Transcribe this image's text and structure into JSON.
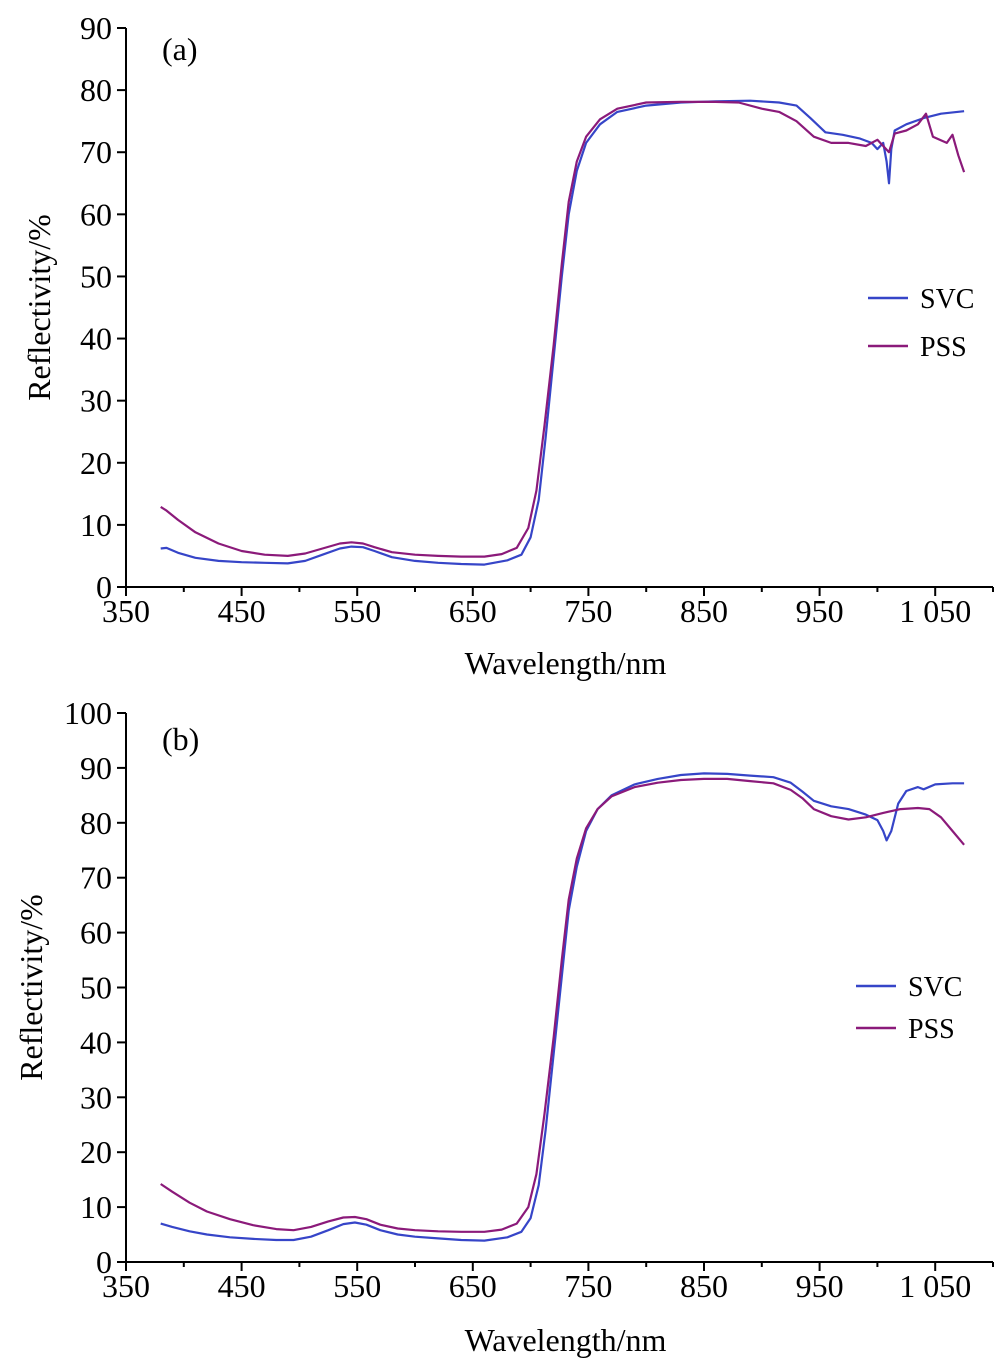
{
  "figure": {
    "colors": {
      "svc": "#3645c8",
      "pss": "#8b1a7a",
      "axis": "#000000"
    }
  },
  "chart_data": [
    {
      "type": "line",
      "panel_label": "(a)",
      "xlabel": "Wavelength/nm",
      "ylabel": "Reflectivity/%",
      "xlim": [
        350,
        1100
      ],
      "ylim": [
        0,
        90
      ],
      "x_ticks": [
        350,
        450,
        550,
        650,
        750,
        850,
        950,
        1050
      ],
      "x_tick_labels": [
        "350",
        "450",
        "550",
        "650",
        "750",
        "850",
        "950",
        "1 050"
      ],
      "y_ticks": [
        0,
        10,
        20,
        30,
        40,
        50,
        60,
        70,
        80,
        90
      ],
      "y_tick_labels": [
        "0",
        "10",
        "20",
        "30",
        "40",
        "50",
        "60",
        "70",
        "80",
        "90"
      ],
      "grid": false,
      "legend": "right",
      "series": [
        {
          "name": "SVC",
          "color": "#3645c8",
          "points": [
            [
              380,
              6.2
            ],
            [
              385,
              6.3
            ],
            [
              395,
              5.5
            ],
            [
              410,
              4.7
            ],
            [
              430,
              4.2
            ],
            [
              450,
              4.0
            ],
            [
              470,
              3.9
            ],
            [
              490,
              3.8
            ],
            [
              505,
              4.2
            ],
            [
              520,
              5.2
            ],
            [
              535,
              6.2
            ],
            [
              545,
              6.5
            ],
            [
              555,
              6.4
            ],
            [
              565,
              5.8
            ],
            [
              580,
              4.8
            ],
            [
              600,
              4.2
            ],
            [
              620,
              3.9
            ],
            [
              640,
              3.7
            ],
            [
              660,
              3.6
            ],
            [
              680,
              4.3
            ],
            [
              692,
              5.2
            ],
            [
              700,
              8.0
            ],
            [
              707,
              14.0
            ],
            [
              713,
              24.0
            ],
            [
              720,
              37.0
            ],
            [
              727,
              50.0
            ],
            [
              733,
              60.0
            ],
            [
              740,
              67.0
            ],
            [
              748,
              71.5
            ],
            [
              760,
              74.5
            ],
            [
              775,
              76.5
            ],
            [
              800,
              77.5
            ],
            [
              830,
              78.0
            ],
            [
              860,
              78.2
            ],
            [
              890,
              78.3
            ],
            [
              915,
              78.0
            ],
            [
              930,
              77.5
            ],
            [
              942,
              75.5
            ],
            [
              955,
              73.2
            ],
            [
              970,
              72.8
            ],
            [
              985,
              72.2
            ],
            [
              995,
              71.5
            ],
            [
              1000,
              70.5
            ],
            [
              1005,
              71.5
            ],
            [
              1008,
              68.5
            ],
            [
              1010,
              65.0
            ],
            [
              1012,
              70.5
            ],
            [
              1015,
              73.5
            ],
            [
              1025,
              74.5
            ],
            [
              1040,
              75.5
            ],
            [
              1055,
              76.2
            ],
            [
              1075,
              76.6
            ]
          ]
        },
        {
          "name": "PSS",
          "color": "#8b1a7a",
          "points": [
            [
              380,
              12.9
            ],
            [
              385,
              12.3
            ],
            [
              395,
              10.8
            ],
            [
              410,
              8.8
            ],
            [
              430,
              7.0
            ],
            [
              450,
              5.8
            ],
            [
              470,
              5.2
            ],
            [
              490,
              5.0
            ],
            [
              505,
              5.4
            ],
            [
              520,
              6.2
            ],
            [
              535,
              7.0
            ],
            [
              545,
              7.2
            ],
            [
              555,
              7.0
            ],
            [
              565,
              6.4
            ],
            [
              580,
              5.6
            ],
            [
              600,
              5.2
            ],
            [
              620,
              5.0
            ],
            [
              640,
              4.9
            ],
            [
              660,
              4.9
            ],
            [
              675,
              5.3
            ],
            [
              688,
              6.3
            ],
            [
              698,
              9.5
            ],
            [
              705,
              15.5
            ],
            [
              712,
              26.0
            ],
            [
              720,
              39.0
            ],
            [
              727,
              52.0
            ],
            [
              733,
              62.0
            ],
            [
              740,
              68.5
            ],
            [
              748,
              72.5
            ],
            [
              760,
              75.3
            ],
            [
              775,
              77.0
            ],
            [
              800,
              78.0
            ],
            [
              830,
              78.1
            ],
            [
              860,
              78.1
            ],
            [
              880,
              78.0
            ],
            [
              900,
              77.0
            ],
            [
              915,
              76.5
            ],
            [
              930,
              75.0
            ],
            [
              945,
              72.5
            ],
            [
              960,
              71.5
            ],
            [
              975,
              71.5
            ],
            [
              990,
              71.0
            ],
            [
              1000,
              72.0
            ],
            [
              1010,
              70.0
            ],
            [
              1015,
              73.0
            ],
            [
              1025,
              73.5
            ],
            [
              1035,
              74.5
            ],
            [
              1042,
              76.2
            ],
            [
              1048,
              72.5
            ],
            [
              1060,
              71.5
            ],
            [
              1065,
              72.8
            ],
            [
              1070,
              69.5
            ],
            [
              1075,
              66.8
            ]
          ]
        }
      ]
    },
    {
      "type": "line",
      "panel_label": "(b)",
      "xlabel": "Wavelength/nm",
      "ylabel": "Reflectivity/%",
      "xlim": [
        350,
        1100
      ],
      "ylim": [
        0,
        100
      ],
      "x_ticks": [
        350,
        450,
        550,
        650,
        750,
        850,
        950,
        1050
      ],
      "x_tick_labels": [
        "350",
        "450",
        "550",
        "650",
        "750",
        "850",
        "950",
        "1 050"
      ],
      "y_ticks": [
        0,
        10,
        20,
        30,
        40,
        50,
        60,
        70,
        80,
        90,
        100
      ],
      "y_tick_labels": [
        "0",
        "10",
        "20",
        "30",
        "40",
        "50",
        "60",
        "70",
        "80",
        "90",
        "100"
      ],
      "grid": false,
      "legend": "right",
      "series": [
        {
          "name": "SVC",
          "color": "#3645c8",
          "points": [
            [
              380,
              7.0
            ],
            [
              390,
              6.4
            ],
            [
              405,
              5.6
            ],
            [
              420,
              5.0
            ],
            [
              440,
              4.5
            ],
            [
              460,
              4.2
            ],
            [
              480,
              4.0
            ],
            [
              495,
              4.0
            ],
            [
              510,
              4.6
            ],
            [
              525,
              5.8
            ],
            [
              538,
              6.9
            ],
            [
              548,
              7.2
            ],
            [
              558,
              6.8
            ],
            [
              570,
              5.8
            ],
            [
              585,
              5.0
            ],
            [
              600,
              4.6
            ],
            [
              620,
              4.3
            ],
            [
              640,
              4.0
            ],
            [
              660,
              3.9
            ],
            [
              680,
              4.5
            ],
            [
              692,
              5.5
            ],
            [
              700,
              8.0
            ],
            [
              707,
              14.0
            ],
            [
              713,
              24.0
            ],
            [
              720,
              38.0
            ],
            [
              727,
              52.0
            ],
            [
              733,
              64.0
            ],
            [
              740,
              72.0
            ],
            [
              748,
              78.5
            ],
            [
              758,
              82.5
            ],
            [
              770,
              85.0
            ],
            [
              790,
              87.0
            ],
            [
              810,
              88.0
            ],
            [
              830,
              88.7
            ],
            [
              850,
              89.0
            ],
            [
              870,
              88.9
            ],
            [
              890,
              88.6
            ],
            [
              910,
              88.3
            ],
            [
              925,
              87.3
            ],
            [
              935,
              85.7
            ],
            [
              945,
              84.0
            ],
            [
              960,
              83.0
            ],
            [
              975,
              82.5
            ],
            [
              990,
              81.5
            ],
            [
              1000,
              80.5
            ],
            [
              1005,
              78.5
            ],
            [
              1008,
              76.8
            ],
            [
              1012,
              78.5
            ],
            [
              1018,
              83.5
            ],
            [
              1025,
              85.8
            ],
            [
              1035,
              86.5
            ],
            [
              1040,
              86.1
            ],
            [
              1050,
              87.0
            ],
            [
              1065,
              87.2
            ],
            [
              1075,
              87.2
            ]
          ]
        },
        {
          "name": "PSS",
          "color": "#8b1a7a",
          "points": [
            [
              380,
              14.2
            ],
            [
              390,
              12.8
            ],
            [
              405,
              10.8
            ],
            [
              420,
              9.2
            ],
            [
              440,
              7.8
            ],
            [
              460,
              6.7
            ],
            [
              480,
              6.0
            ],
            [
              495,
              5.8
            ],
            [
              510,
              6.4
            ],
            [
              525,
              7.4
            ],
            [
              538,
              8.1
            ],
            [
              548,
              8.2
            ],
            [
              558,
              7.8
            ],
            [
              570,
              6.8
            ],
            [
              585,
              6.1
            ],
            [
              600,
              5.8
            ],
            [
              620,
              5.6
            ],
            [
              640,
              5.5
            ],
            [
              660,
              5.5
            ],
            [
              675,
              5.9
            ],
            [
              688,
              7.0
            ],
            [
              698,
              10.0
            ],
            [
              705,
              16.0
            ],
            [
              712,
              27.0
            ],
            [
              720,
              41.0
            ],
            [
              727,
              55.0
            ],
            [
              733,
              66.0
            ],
            [
              740,
              73.5
            ],
            [
              748,
              79.0
            ],
            [
              758,
              82.5
            ],
            [
              770,
              84.8
            ],
            [
              790,
              86.5
            ],
            [
              810,
              87.3
            ],
            [
              830,
              87.8
            ],
            [
              850,
              88.0
            ],
            [
              870,
              88.0
            ],
            [
              890,
              87.6
            ],
            [
              910,
              87.2
            ],
            [
              925,
              86.0
            ],
            [
              935,
              84.5
            ],
            [
              945,
              82.5
            ],
            [
              960,
              81.2
            ],
            [
              975,
              80.6
            ],
            [
              990,
              81.0
            ],
            [
              1005,
              81.8
            ],
            [
              1020,
              82.5
            ],
            [
              1035,
              82.7
            ],
            [
              1045,
              82.5
            ],
            [
              1055,
              81.0
            ],
            [
              1065,
              78.5
            ],
            [
              1075,
              76.0
            ]
          ]
        }
      ]
    }
  ]
}
